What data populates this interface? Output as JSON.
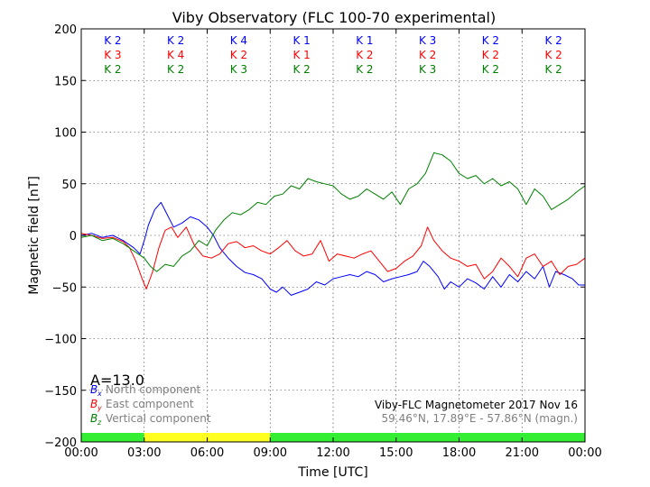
{
  "chart_data": {
    "type": "line",
    "title": "Viby Observatory (FLC 100-70 experimental)",
    "xlabel": "Time [UTC]",
    "ylabel": "Magnetic field [nT]",
    "xlim": [
      0,
      24
    ],
    "ylim": [
      -200,
      200
    ],
    "grid": true,
    "x_ticks": [
      {
        "value": 0,
        "label": "00:00"
      },
      {
        "value": 3,
        "label": "03:00"
      },
      {
        "value": 6,
        "label": "06:00"
      },
      {
        "value": 9,
        "label": "09:00"
      },
      {
        "value": 12,
        "label": "12:00"
      },
      {
        "value": 15,
        "label": "15:00"
      },
      {
        "value": 18,
        "label": "18:00"
      },
      {
        "value": 21,
        "label": "21:00"
      },
      {
        "value": 24,
        "label": "00:00"
      }
    ],
    "y_ticks": [
      {
        "value": 200,
        "label": "200"
      },
      {
        "value": 150,
        "label": "150"
      },
      {
        "value": 100,
        "label": "100"
      },
      {
        "value": 50,
        "label": "50"
      },
      {
        "value": 0,
        "label": "0"
      },
      {
        "value": -50,
        "label": "−50"
      },
      {
        "value": -100,
        "label": "−100"
      },
      {
        "value": -150,
        "label": "−150"
      },
      {
        "value": -200,
        "label": "−200"
      }
    ],
    "series": [
      {
        "name": "North component",
        "legend_symbol": "B",
        "legend_sub": "x",
        "color": "#0000ff",
        "x": [
          0,
          0.5,
          1,
          1.5,
          2,
          2.5,
          2.8,
          3,
          3.2,
          3.5,
          3.8,
          4.1,
          4.4,
          4.8,
          5.2,
          5.6,
          6,
          6.3,
          6.6,
          7,
          7.4,
          7.8,
          8.2,
          8.6,
          9,
          9.3,
          9.6,
          10,
          10.4,
          10.8,
          11.2,
          11.6,
          12,
          12.4,
          12.8,
          13.2,
          13.6,
          14,
          14.4,
          14.8,
          15.2,
          15.6,
          16,
          16.3,
          16.6,
          17,
          17.3,
          17.6,
          18,
          18.4,
          18.8,
          19.2,
          19.6,
          20,
          20.4,
          20.8,
          21.2,
          21.6,
          22,
          22.3,
          22.6,
          23,
          23.4,
          23.7,
          24
        ],
        "y": [
          0,
          2,
          -2,
          0,
          -5,
          -12,
          -18,
          -5,
          10,
          25,
          32,
          20,
          8,
          12,
          18,
          15,
          8,
          0,
          -12,
          -22,
          -30,
          -36,
          -38,
          -42,
          -52,
          -55,
          -50,
          -58,
          -55,
          -52,
          -45,
          -48,
          -42,
          -40,
          -38,
          -40,
          -35,
          -38,
          -45,
          -42,
          -40,
          -38,
          -35,
          -25,
          -30,
          -40,
          -52,
          -45,
          -50,
          -42,
          -46,
          -52,
          -40,
          -50,
          -38,
          -45,
          -35,
          -42,
          -30,
          -50,
          -35,
          -38,
          -42,
          -48,
          -48
        ]
      },
      {
        "name": "East component",
        "legend_symbol": "B",
        "legend_sub": "y",
        "color": "#ff0000",
        "x": [
          0,
          0.5,
          1,
          1.5,
          2,
          2.3,
          2.6,
          2.9,
          3.1,
          3.4,
          3.7,
          4,
          4.3,
          4.6,
          5,
          5.4,
          5.8,
          6.2,
          6.6,
          7,
          7.4,
          7.8,
          8.2,
          8.6,
          9,
          9.4,
          9.8,
          10.2,
          10.6,
          11,
          11.4,
          11.8,
          12.2,
          12.6,
          13,
          13.4,
          13.8,
          14.2,
          14.6,
          15,
          15.4,
          15.8,
          16.2,
          16.5,
          16.8,
          17.2,
          17.6,
          18,
          18.4,
          18.8,
          19.2,
          19.6,
          20,
          20.4,
          20.8,
          21.2,
          21.6,
          22,
          22.4,
          22.8,
          23.2,
          23.6,
          24
        ],
        "y": [
          2,
          0,
          -3,
          -2,
          -6,
          -12,
          -25,
          -42,
          -52,
          -35,
          -12,
          5,
          8,
          -2,
          8,
          -10,
          -20,
          -22,
          -18,
          -8,
          -6,
          -12,
          -10,
          -15,
          -18,
          -12,
          -5,
          -15,
          -20,
          -18,
          -5,
          -25,
          -18,
          -20,
          -22,
          -18,
          -15,
          -25,
          -35,
          -32,
          -25,
          -20,
          -10,
          8,
          -5,
          -15,
          -22,
          -25,
          -30,
          -28,
          -42,
          -35,
          -22,
          -30,
          -40,
          -22,
          -18,
          -30,
          -25,
          -38,
          -30,
          -28,
          -22
        ]
      },
      {
        "name": "Vertical component",
        "legend_symbol": "B",
        "legend_sub": "z",
        "color": "#008000",
        "x": [
          0,
          0.5,
          1,
          1.5,
          2,
          2.5,
          3,
          3.3,
          3.6,
          4,
          4.4,
          4.8,
          5.2,
          5.6,
          6,
          6.4,
          6.8,
          7.2,
          7.6,
          8,
          8.4,
          8.8,
          9.2,
          9.6,
          10,
          10.4,
          10.8,
          11.2,
          11.6,
          12,
          12.4,
          12.8,
          13.2,
          13.6,
          14,
          14.4,
          14.8,
          15.2,
          15.6,
          16,
          16.4,
          16.8,
          17.2,
          17.6,
          18,
          18.4,
          18.8,
          19.2,
          19.6,
          20,
          20.4,
          20.8,
          21.2,
          21.6,
          22,
          22.4,
          22.8,
          23.2,
          23.6,
          24
        ],
        "y": [
          -2,
          0,
          -5,
          -3,
          -8,
          -15,
          -22,
          -30,
          -35,
          -28,
          -30,
          -20,
          -15,
          -5,
          -10,
          5,
          15,
          22,
          20,
          25,
          32,
          30,
          38,
          40,
          48,
          45,
          55,
          52,
          50,
          48,
          40,
          35,
          38,
          45,
          40,
          35,
          42,
          30,
          45,
          50,
          60,
          80,
          78,
          72,
          60,
          55,
          58,
          50,
          55,
          48,
          52,
          45,
          30,
          45,
          38,
          25,
          30,
          35,
          42,
          48
        ]
      }
    ],
    "k_index_rows": [
      {
        "color": "#0000ff",
        "values": [
          "K 2",
          "K 2",
          "K 4",
          "K 1",
          "K 1",
          "K 3",
          "K 2",
          "K 2"
        ]
      },
      {
        "color": "#ff0000",
        "values": [
          "K 3",
          "K 4",
          "K 2",
          "K 1",
          "K 2",
          "K 2",
          "K 2",
          "K 2"
        ]
      },
      {
        "color": "#008000",
        "values": [
          "K 2",
          "K 2",
          "K 3",
          "K 2",
          "K 2",
          "K 3",
          "K 2",
          "K 2"
        ]
      }
    ],
    "a_index": "A=13.0",
    "bottom_bar": [
      {
        "from": 0,
        "to": 3,
        "color": "#33ee33"
      },
      {
        "from": 3,
        "to": 9,
        "color": "#ffff22"
      },
      {
        "from": 9,
        "to": 24,
        "color": "#33ee33"
      }
    ],
    "info_line1": "Viby-FLC Magnetometer 2017 Nov 16",
    "info_line2": "59.46°N, 17.89°E - 57.86°N (magn.)"
  }
}
